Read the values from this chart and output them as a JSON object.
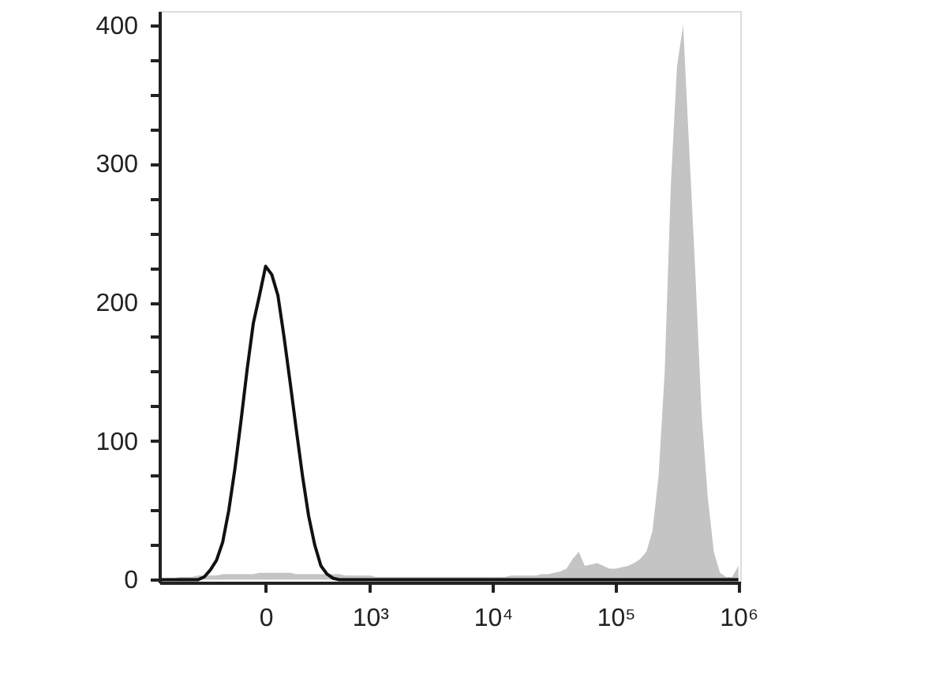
{
  "chart_data": {
    "type": "area",
    "grid": false,
    "ylim": [
      -2,
      410
    ],
    "categories": [
      null,
      null,
      null,
      null,
      null,
      null,
      null,
      null,
      null,
      null,
      null,
      null,
      null,
      null,
      null,
      null,
      null,
      "0",
      null,
      null,
      null,
      null,
      null,
      null,
      null,
      null,
      null,
      null,
      null,
      null,
      null,
      null,
      null,
      null,
      "10³",
      null,
      null,
      null,
      null,
      null,
      null,
      null,
      null,
      null,
      null,
      null,
      null,
      null,
      null,
      null,
      null,
      null,
      null,
      null,
      "10⁴",
      null,
      null,
      null,
      null,
      null,
      null,
      null,
      null,
      null,
      null,
      null,
      null,
      null,
      null,
      null,
      null,
      null,
      null,
      null,
      "10⁵",
      null,
      null,
      null,
      null,
      null,
      null,
      null,
      null,
      null,
      null,
      null,
      null,
      null,
      null,
      null,
      null,
      null,
      null,
      null,
      "10⁶"
    ],
    "yticks": [
      0,
      {
        "value": 25,
        "label": null
      },
      {
        "value": 50,
        "label": null
      },
      {
        "value": 75,
        "label": null
      },
      100,
      {
        "value": 125,
        "label": null
      },
      {
        "value": 150,
        "label": null
      },
      {
        "value": 175,
        "label": null
      },
      200,
      {
        "value": 225,
        "label": null
      },
      {
        "value": 250,
        "label": null
      },
      {
        "value": 275,
        "label": null
      },
      300,
      {
        "value": 325,
        "label": null
      },
      {
        "value": 350,
        "label": null
      },
      {
        "value": 375,
        "label": null
      },
      400
    ],
    "series": [
      {
        "color": "#c4c4c4",
        "values": [
          0,
          1,
          1,
          2,
          2,
          2,
          3,
          3,
          3,
          3,
          4,
          4,
          4,
          4,
          4,
          4,
          5,
          5,
          5,
          5,
          5,
          5,
          4,
          4,
          4,
          4,
          4,
          4,
          4,
          4,
          3,
          3,
          3,
          3,
          3,
          2,
          2,
          2,
          2,
          2,
          2,
          2,
          2,
          2,
          2,
          2,
          2,
          2,
          2,
          2,
          2,
          2,
          2,
          2,
          2,
          2,
          2,
          3,
          3,
          3,
          3,
          3,
          4,
          4,
          5,
          6,
          8,
          15,
          20,
          10,
          11,
          12,
          10,
          8,
          8,
          9,
          10,
          12,
          15,
          20,
          35,
          75,
          150,
          285,
          370,
          400,
          310,
          220,
          120,
          60,
          20,
          5,
          2,
          2,
          10
        ]
      },
      {
        "type": "line",
        "color": "#111111",
        "values": [
          0,
          0,
          0,
          0,
          0,
          0,
          0,
          2,
          7,
          14,
          27,
          50,
          80,
          115,
          152,
          185,
          205,
          226,
          220,
          205,
          175,
          142,
          108,
          75,
          46,
          25,
          10,
          4,
          1,
          0,
          0,
          0,
          0,
          0,
          0,
          0,
          0,
          0,
          0,
          0,
          0,
          0,
          0,
          0,
          0,
          0,
          0,
          0,
          0,
          0,
          0,
          0,
          0,
          0,
          0,
          0,
          0,
          0,
          0,
          0,
          0,
          0,
          0,
          0,
          0,
          0,
          0,
          0,
          0,
          0,
          0,
          0,
          0,
          0,
          0,
          0,
          0,
          0,
          0,
          0,
          0,
          0,
          0,
          0,
          0,
          0,
          0,
          0,
          0,
          0,
          0,
          0,
          0,
          0,
          0
        ]
      }
    ]
  }
}
